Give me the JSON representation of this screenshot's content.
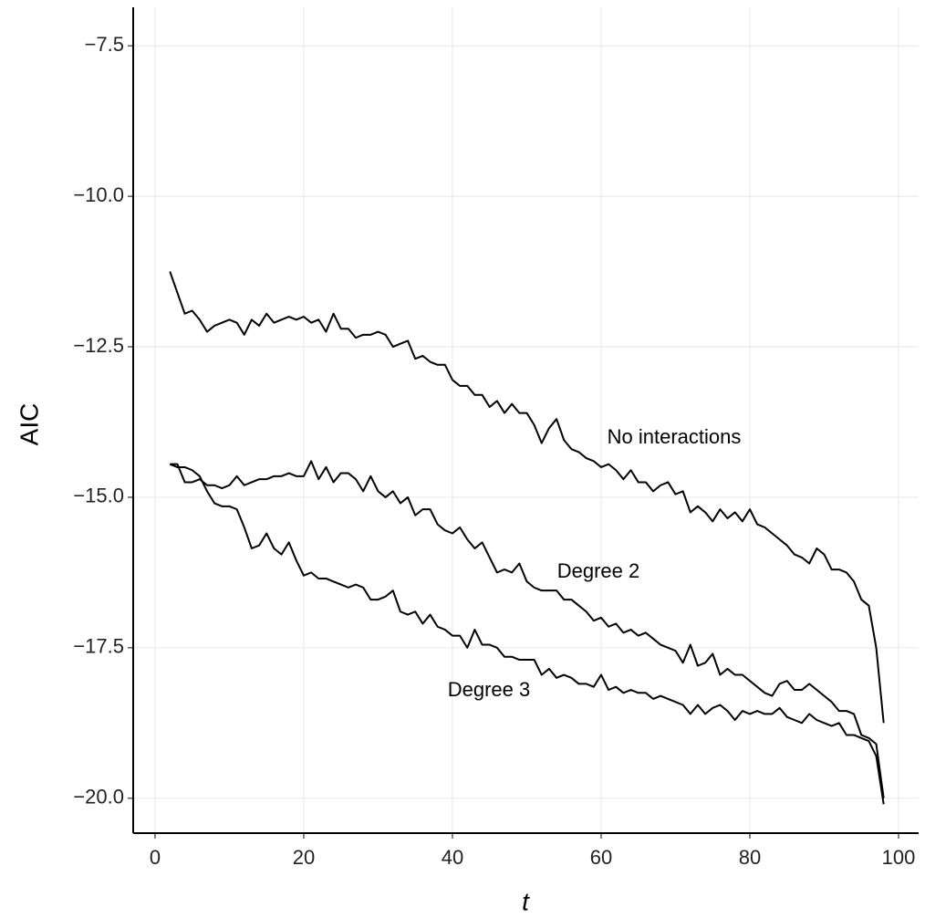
{
  "chart_data": {
    "type": "line",
    "x_label": "t",
    "y_label": "AIC",
    "x": [
      2,
      3,
      4,
      5,
      6,
      7,
      8,
      9,
      10,
      11,
      12,
      13,
      14,
      15,
      16,
      17,
      18,
      19,
      20,
      21,
      22,
      23,
      24,
      25,
      26,
      27,
      28,
      29,
      30,
      31,
      32,
      33,
      34,
      35,
      36,
      37,
      38,
      39,
      40,
      41,
      42,
      43,
      44,
      45,
      46,
      47,
      48,
      49,
      50,
      51,
      52,
      53,
      54,
      55,
      56,
      57,
      58,
      59,
      60,
      61,
      62,
      63,
      64,
      65,
      66,
      67,
      68,
      69,
      70,
      71,
      72,
      73,
      74,
      75,
      76,
      77,
      78,
      79,
      80,
      81,
      82,
      83,
      84,
      85,
      86,
      87,
      88,
      89,
      90,
      91,
      92,
      93,
      94,
      95,
      96,
      97,
      98
    ],
    "series": [
      {
        "name": "No interactions",
        "color": "#000000",
        "values": [
          -11.25,
          -11.6,
          -11.95,
          -11.9,
          -12.05,
          -12.25,
          -12.15,
          -12.1,
          -12.05,
          -12.1,
          -12.3,
          -12.05,
          -12.15,
          -11.95,
          -12.1,
          -12.05,
          -12.0,
          -12.05,
          -12.0,
          -12.1,
          -12.05,
          -12.25,
          -11.95,
          -12.2,
          -12.2,
          -12.35,
          -12.3,
          -12.3,
          -12.25,
          -12.3,
          -12.5,
          -12.45,
          -12.4,
          -12.7,
          -12.65,
          -12.75,
          -12.8,
          -12.8,
          -13.05,
          -13.15,
          -13.15,
          -13.3,
          -13.3,
          -13.5,
          -13.4,
          -13.6,
          -13.45,
          -13.6,
          -13.6,
          -13.8,
          -14.1,
          -13.85,
          -13.7,
          -14.05,
          -14.2,
          -14.25,
          -14.35,
          -14.4,
          -14.5,
          -14.45,
          -14.55,
          -14.7,
          -14.55,
          -14.75,
          -14.75,
          -14.9,
          -14.8,
          -14.75,
          -14.95,
          -14.9,
          -15.25,
          -15.15,
          -15.25,
          -15.4,
          -15.2,
          -15.35,
          -15.25,
          -15.4,
          -15.2,
          -15.45,
          -15.5,
          -15.6,
          -15.7,
          -15.8,
          -15.95,
          -16.0,
          -16.1,
          -15.85,
          -15.95,
          -16.2,
          -16.2,
          -16.25,
          -16.4,
          -16.7,
          -16.8,
          -17.5,
          -18.75
        ]
      },
      {
        "name": "Degree 2",
        "color": "#000000",
        "values": [
          -14.45,
          -14.45,
          -14.75,
          -14.75,
          -14.7,
          -14.8,
          -14.8,
          -14.85,
          -14.8,
          -14.65,
          -14.8,
          -14.75,
          -14.7,
          -14.7,
          -14.65,
          -14.65,
          -14.6,
          -14.65,
          -14.65,
          -14.4,
          -14.7,
          -14.5,
          -14.75,
          -14.6,
          -14.6,
          -14.7,
          -14.9,
          -14.65,
          -14.9,
          -15.0,
          -14.9,
          -15.1,
          -15.0,
          -15.3,
          -15.2,
          -15.2,
          -15.45,
          -15.55,
          -15.6,
          -15.5,
          -15.7,
          -15.85,
          -15.75,
          -16.0,
          -16.25,
          -16.2,
          -16.25,
          -16.1,
          -16.4,
          -16.5,
          -16.55,
          -16.55,
          -16.55,
          -16.7,
          -16.7,
          -16.8,
          -16.9,
          -17.05,
          -17.0,
          -17.15,
          -17.1,
          -17.25,
          -17.2,
          -17.3,
          -17.25,
          -17.35,
          -17.45,
          -17.5,
          -17.55,
          -17.75,
          -17.45,
          -17.8,
          -17.75,
          -17.6,
          -17.95,
          -17.85,
          -17.95,
          -17.95,
          -18.05,
          -18.15,
          -18.25,
          -18.3,
          -18.1,
          -18.05,
          -18.2,
          -18.2,
          -18.1,
          -18.2,
          -18.3,
          -18.4,
          -18.55,
          -18.55,
          -18.6,
          -18.95,
          -19.0,
          -19.1,
          -20.0
        ]
      },
      {
        "name": "Degree 3",
        "color": "#000000",
        "values": [
          -14.45,
          -14.5,
          -14.5,
          -14.55,
          -14.65,
          -14.9,
          -15.1,
          -15.15,
          -15.15,
          -15.2,
          -15.5,
          -15.85,
          -15.8,
          -15.6,
          -15.85,
          -15.95,
          -15.75,
          -16.05,
          -16.3,
          -16.25,
          -16.35,
          -16.35,
          -16.4,
          -16.45,
          -16.5,
          -16.45,
          -16.5,
          -16.7,
          -16.7,
          -16.65,
          -16.55,
          -16.9,
          -16.95,
          -16.9,
          -17.1,
          -16.95,
          -17.15,
          -17.2,
          -17.3,
          -17.3,
          -17.5,
          -17.2,
          -17.45,
          -17.45,
          -17.5,
          -17.65,
          -17.65,
          -17.7,
          -17.7,
          -17.7,
          -17.95,
          -17.85,
          -18.0,
          -17.95,
          -18.0,
          -18.1,
          -18.1,
          -18.15,
          -17.95,
          -18.2,
          -18.15,
          -18.25,
          -18.2,
          -18.25,
          -18.25,
          -18.35,
          -18.3,
          -18.35,
          -18.4,
          -18.45,
          -18.6,
          -18.45,
          -18.6,
          -18.5,
          -18.45,
          -18.55,
          -18.7,
          -18.55,
          -18.6,
          -18.55,
          -18.6,
          -18.6,
          -18.5,
          -18.65,
          -18.7,
          -18.75,
          -18.6,
          -18.7,
          -18.75,
          -18.8,
          -18.75,
          -18.95,
          -18.95,
          -19.0,
          -19.05,
          -19.3,
          -20.1
        ]
      }
    ],
    "xlim": [
      -2.94,
      102.7
    ],
    "ylim": [
      -20.58,
      -6.86
    ],
    "xticks": [
      0,
      20,
      40,
      60,
      80,
      100
    ],
    "yticks": [
      {
        "value": -7.5,
        "label": "−7.5"
      },
      {
        "value": -10,
        "label": "−10.0"
      },
      {
        "value": -12.5,
        "label": "−12.5"
      },
      {
        "value": -15,
        "label": "−15.0"
      },
      {
        "value": -17.5,
        "label": "−17.5"
      },
      {
        "value": -20,
        "label": "−20.0"
      }
    ],
    "grid": true
  }
}
